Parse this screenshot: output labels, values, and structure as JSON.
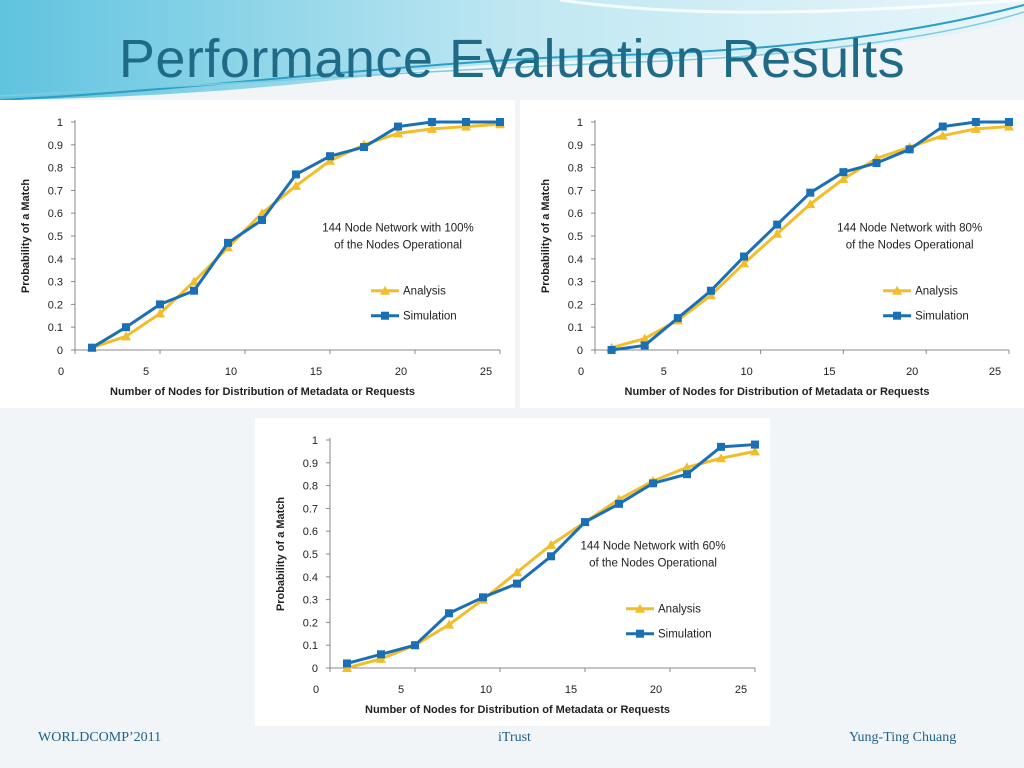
{
  "slide": {
    "title": "Performance Evaluation Results",
    "footer_left": "WORLDCOMP’2011",
    "footer_center": "iTrust",
    "footer_right": "Yung-Ting Chuang"
  },
  "colors": {
    "analysis": "#f2bd2a",
    "simulation": "#1a6fb5",
    "title": "#1f6b87",
    "footer": "#1f5f8b"
  },
  "chart_data": [
    {
      "type": "line",
      "annotation_lines": [
        "144 Node Network with 100%",
        "of the Nodes Operational"
      ],
      "xlabel": "Number of Nodes for Distribution of Metadata or Requests",
      "ylabel": "Probability of a Match",
      "xlim": [
        0,
        25
      ],
      "ylim": [
        0,
        1
      ],
      "x_ticks": [
        "0",
        "5",
        "10",
        "15",
        "20",
        "25"
      ],
      "y_ticks": [
        "0",
        "0.1",
        "0.2",
        "0.3",
        "0.4",
        "0.5",
        "0.6",
        "0.7",
        "0.8",
        "0.9",
        "1"
      ],
      "legend_position": "right",
      "x": [
        1,
        3,
        5,
        7,
        9,
        11,
        13,
        15,
        17,
        19,
        21,
        23,
        25
      ],
      "series": [
        {
          "name": "Analysis",
          "marker": "triangle",
          "values": [
            0.01,
            0.06,
            0.16,
            0.3,
            0.45,
            0.6,
            0.72,
            0.83,
            0.9,
            0.95,
            0.97,
            0.98,
            0.99
          ]
        },
        {
          "name": "Simulation",
          "marker": "square",
          "values": [
            0.01,
            0.1,
            0.2,
            0.26,
            0.47,
            0.57,
            0.77,
            0.85,
            0.89,
            0.98,
            1.0,
            1.0,
            1.0
          ]
        }
      ]
    },
    {
      "type": "line",
      "annotation_lines": [
        "144 Node Network with 80%",
        "of the Nodes Operational"
      ],
      "xlabel": "Number of Nodes for Distribution of Metadata or Requests",
      "ylabel": "Probability of a Match",
      "xlim": [
        0,
        25
      ],
      "ylim": [
        0,
        1
      ],
      "x_ticks": [
        "0",
        "5",
        "10",
        "15",
        "20",
        "25"
      ],
      "y_ticks": [
        "0",
        "0.1",
        "0.2",
        "0.3",
        "0.4",
        "0.5",
        "0.6",
        "0.7",
        "0.8",
        "0.9",
        "1"
      ],
      "legend_position": "right",
      "x": [
        1,
        3,
        5,
        7,
        9,
        11,
        13,
        15,
        17,
        19,
        21,
        23,
        25
      ],
      "series": [
        {
          "name": "Analysis",
          "marker": "triangle",
          "values": [
            0.01,
            0.05,
            0.13,
            0.24,
            0.38,
            0.51,
            0.64,
            0.75,
            0.84,
            0.89,
            0.94,
            0.97,
            0.98
          ]
        },
        {
          "name": "Simulation",
          "marker": "square",
          "values": [
            0.0,
            0.02,
            0.14,
            0.26,
            0.41,
            0.55,
            0.69,
            0.78,
            0.82,
            0.88,
            0.98,
            1.0,
            1.0
          ]
        }
      ]
    },
    {
      "type": "line",
      "annotation_lines": [
        "144 Node Network with 60%",
        "of the Nodes Operational"
      ],
      "xlabel": "Number of Nodes for Distribution of Metadata or Requests",
      "ylabel": "Probability of a Match",
      "xlim": [
        0,
        25
      ],
      "ylim": [
        0,
        1
      ],
      "x_ticks": [
        "0",
        "5",
        "10",
        "15",
        "20",
        "25"
      ],
      "y_ticks": [
        "0",
        "0.1",
        "0.2",
        "0.3",
        "0.4",
        "0.5",
        "0.6",
        "0.7",
        "0.8",
        "0.9",
        "1"
      ],
      "legend_position": "right",
      "x": [
        1,
        3,
        5,
        7,
        9,
        11,
        13,
        15,
        17,
        19,
        21,
        23,
        25
      ],
      "series": [
        {
          "name": "Analysis",
          "marker": "triangle",
          "values": [
            0.0,
            0.04,
            0.1,
            0.19,
            0.3,
            0.42,
            0.54,
            0.64,
            0.74,
            0.82,
            0.88,
            0.92,
            0.95
          ]
        },
        {
          "name": "Simulation",
          "marker": "square",
          "values": [
            0.02,
            0.06,
            0.1,
            0.24,
            0.31,
            0.37,
            0.49,
            0.64,
            0.72,
            0.81,
            0.85,
            0.97,
            0.98
          ]
        }
      ]
    }
  ]
}
